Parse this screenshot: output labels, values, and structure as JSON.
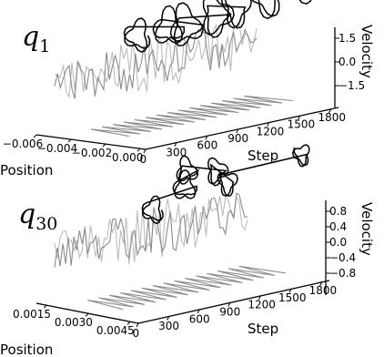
{
  "chart_data": [
    {
      "type": "line",
      "panel_label": "q",
      "panel_subscript": "1",
      "xlabel": "Step",
      "ylabel": "Position",
      "zlabel": "Velocity",
      "step_ticks": [
        "0",
        "300",
        "600",
        "900",
        "1200",
        "1500",
        "1800"
      ],
      "position_ticks": [
        "−0.006",
        "−0.004",
        "−0.002",
        "0.000"
      ],
      "velocity_ticks": [
        "1.5",
        "0.0",
        "−1.5"
      ],
      "xlim": [
        0,
        1800
      ],
      "ylim": [
        -0.006,
        0.0
      ],
      "zlim": [
        -1.5,
        1.5
      ],
      "loops": [
        {
          "step": 180,
          "position": -0.0015,
          "velocity": 0.2,
          "r": 0.45
        },
        {
          "step": 420,
          "position": -0.0012,
          "velocity": 0.35,
          "r": 0.6
        },
        {
          "step": 600,
          "position": -0.0013,
          "velocity": 0.25,
          "r": 0.7
        },
        {
          "step": 850,
          "position": -0.0011,
          "velocity": 0.45,
          "r": 0.7
        },
        {
          "step": 1050,
          "position": -0.0012,
          "velocity": 0.55,
          "r": 0.6
        },
        {
          "step": 1300,
          "position": -0.001,
          "velocity": 0.85,
          "r": 0.75
        },
        {
          "step": 1600,
          "position": -0.0009,
          "velocity": 1.15,
          "r": 0.8
        }
      ],
      "grid": false,
      "legend": "none"
    },
    {
      "type": "line",
      "panel_label": "q",
      "panel_subscript": "30",
      "xlabel": "Step",
      "ylabel": "Position",
      "zlabel": "Velocity",
      "step_ticks": [
        "0",
        "300",
        "600",
        "900",
        "1200",
        "1500",
        "1800"
      ],
      "position_ticks": [
        "0.0015",
        "0.0030",
        "0.0045"
      ],
      "velocity_ticks": [
        "0.8",
        "0.4",
        "0.0",
        "−0.4",
        "−0.8"
      ],
      "xlim": [
        0,
        1800
      ],
      "ylim": [
        0.0015,
        0.0045
      ],
      "zlim": [
        -0.8,
        0.8
      ],
      "loops": [
        {
          "step": 300,
          "position": 0.004,
          "velocity": -0.1,
          "r": 0.28
        },
        {
          "step": 600,
          "position": 0.004,
          "velocity": 0.2,
          "r": 0.35
        },
        {
          "step": 650,
          "position": 0.0039,
          "velocity": 0.45,
          "r": 0.3
        },
        {
          "step": 900,
          "position": 0.004,
          "velocity": 0.35,
          "r": 0.3
        },
        {
          "step": 1000,
          "position": 0.004,
          "velocity": 0.1,
          "r": 0.25
        },
        {
          "step": 1700,
          "position": 0.004,
          "velocity": 0.3,
          "r": 0.15
        }
      ],
      "grid": false,
      "legend": "none"
    }
  ]
}
